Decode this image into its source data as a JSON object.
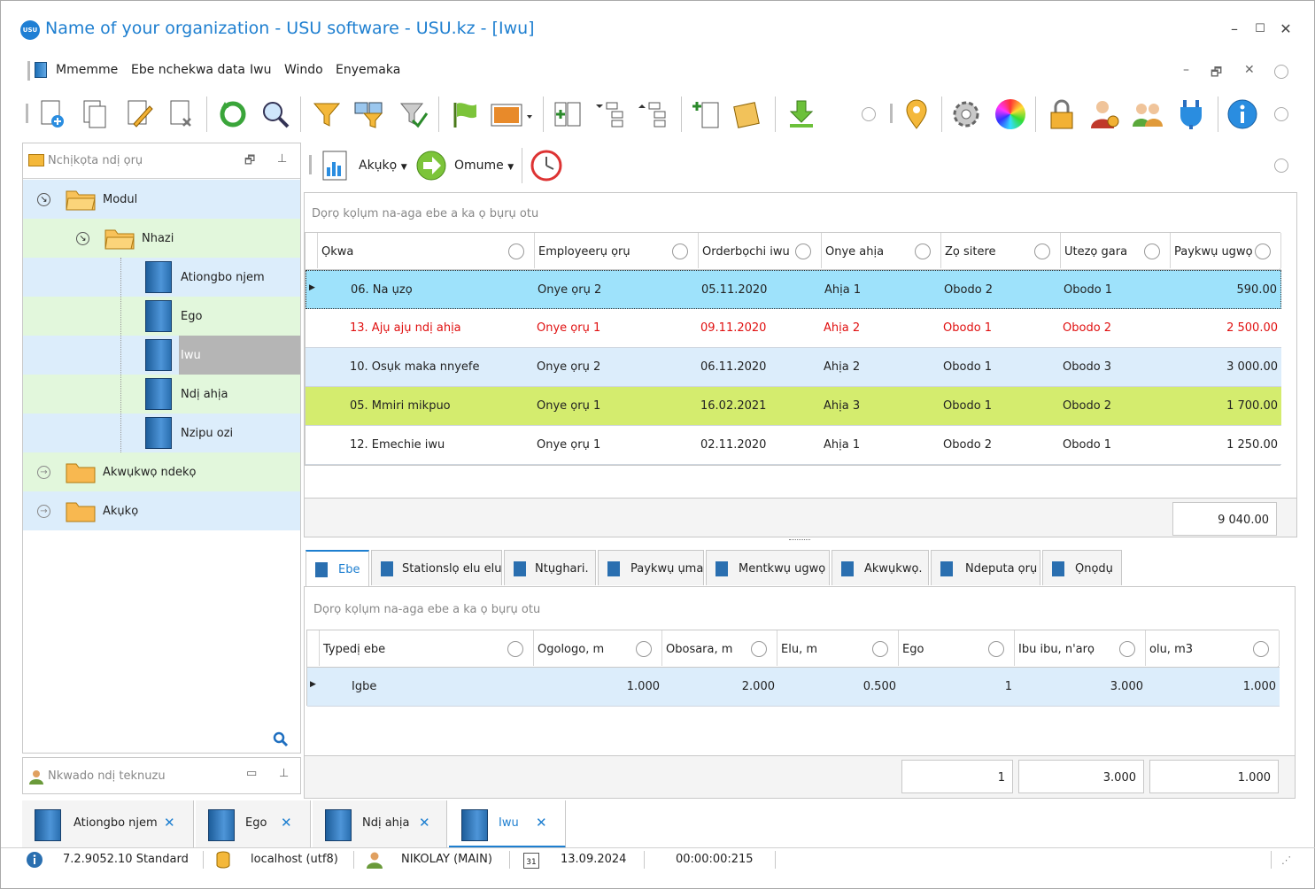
{
  "window": {
    "title": "Name of your organization - USU software - USU.kz - [Iwu]",
    "logo": "USU",
    "minimize": "–",
    "maximize": "☐",
    "close": "✕"
  },
  "menu": {
    "items": [
      "Mmemme",
      "Ebe nchekwa data",
      "Iwu",
      "Windo",
      "Enyemaka"
    ],
    "minimize": "–",
    "restore": "🗗",
    "close": "✕"
  },
  "left_panel": {
    "title": "Nchịkọta ndị ọrụ",
    "tree": [
      {
        "label": "Modul"
      },
      {
        "label": "Nhazi"
      },
      {
        "label": "Ationgbo njem"
      },
      {
        "label": "Ego"
      },
      {
        "label": "Iwu"
      },
      {
        "label": "Ndị ahịa"
      },
      {
        "label": "Nzipu ozi"
      },
      {
        "label": "Akwụkwọ ndekọ"
      },
      {
        "label": "Akụkọ"
      }
    ],
    "bottom_title": "Nkwado ndị teknuzu"
  },
  "subtoolbar": {
    "report": "Akụkọ",
    "action": "Omume"
  },
  "main_grid": {
    "group_hint": "Dọrọ kọlụm na-aga ebe a ka ọ bụrụ otu",
    "columns": [
      "Ọkwa",
      "Employeerụ ọrụ",
      "Orderbọchi iwu",
      "Onye ahịa",
      "Zọ sitere",
      "Utezọ gara",
      "Paykwụ ugwọ"
    ],
    "rows": [
      [
        "06. Na ụzọ",
        "Onye ọrụ 2",
        "05.11.2020",
        "Ahịa 1",
        "Obodo 2",
        "Obodo 1",
        "590.00"
      ],
      [
        "13. Ajụ ajụ ndị ahịa",
        "Onye ọrụ 1",
        "09.11.2020",
        "Ahịa 2",
        "Obodo 1",
        "Obodo 2",
        "2 500.00"
      ],
      [
        "10. Osụk maka nnyefe",
        "Onye ọrụ 2",
        "06.11.2020",
        "Ahịa 2",
        "Obodo 1",
        "Obodo 3",
        "3 000.00"
      ],
      [
        "05. Mmiri mikpuo",
        "Onye ọrụ 1",
        "16.02.2021",
        "Ahịa 3",
        "Obodo 1",
        "Obodo 2",
        "1 700.00"
      ],
      [
        "12. Emechie iwu",
        "Onye ọrụ 1",
        "02.11.2020",
        "Ahịa 1",
        "Obodo 2",
        "Obodo 1",
        "1 250.00"
      ]
    ],
    "total": "9 040.00"
  },
  "detail_tabs": [
    "Ebe",
    "Stationslọ elu elu",
    "Ntụghari.",
    "Paykwụ ụma",
    "Mentkwụ ugwọ",
    "Akwụkwọ.",
    "Ndeputa ọrụ",
    "Ọnọdụ"
  ],
  "detail_grid": {
    "group_hint": "Dọrọ kọlụm na-aga ebe a ka ọ bụrụ otu",
    "columns": [
      "Typedị ebe",
      "Ogologo, m",
      "Obosara, m",
      "Elu, m",
      "Ego",
      "Ibu ibu, n'arọ",
      "olu, m3"
    ],
    "rows": [
      [
        "Igbe",
        "1.000",
        "2.000",
        "0.500",
        "1",
        "3.000",
        "1.000"
      ]
    ],
    "totals": [
      "1",
      "3.000",
      "1.000"
    ]
  },
  "bottom_tabs": [
    {
      "label": "Ationgbo njem"
    },
    {
      "label": "Ego"
    },
    {
      "label": "Ndị ahịa"
    },
    {
      "label": "Iwu"
    }
  ],
  "status": {
    "version": "7.2.9052.10 Standard",
    "db": "localhost (utf8)",
    "user": "NIKOLAY (MAIN)",
    "cal_day": "31",
    "date": "13.09.2024",
    "timer": "00:00:00:215"
  },
  "colors": {
    "accent": "#1e7fd0",
    "selected_row": "#9ee2fb",
    "alt_row": "#dcedfb",
    "green_row": "#d4ec6e",
    "red_text": "#e01010"
  }
}
